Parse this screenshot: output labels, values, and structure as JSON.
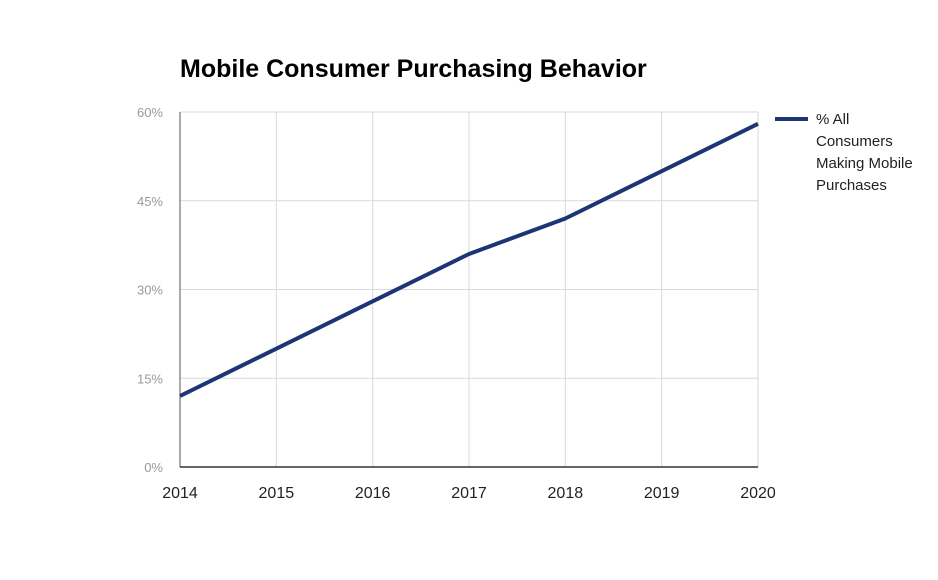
{
  "chart_data": {
    "type": "line",
    "title": "Mobile Consumer Purchasing Behavior",
    "xlabel": "",
    "ylabel": "",
    "x": [
      "2014",
      "2015",
      "2016",
      "2017",
      "2018",
      "2019",
      "2020"
    ],
    "series": [
      {
        "name": "% All Consumers Making Mobile Purchases",
        "legend_lines": [
          "% All",
          "Consumers",
          "Making Mobile",
          "Purchases"
        ],
        "values": [
          12,
          20,
          28,
          36,
          42,
          50,
          58
        ],
        "color": "#1c3574"
      }
    ],
    "y_ticks": [
      0,
      15,
      30,
      45,
      60
    ],
    "y_tick_labels": [
      "0%",
      "15%",
      "30%",
      "45%",
      "60%"
    ],
    "ylim": [
      0,
      60
    ],
    "grid": true,
    "legend_position": "right"
  }
}
